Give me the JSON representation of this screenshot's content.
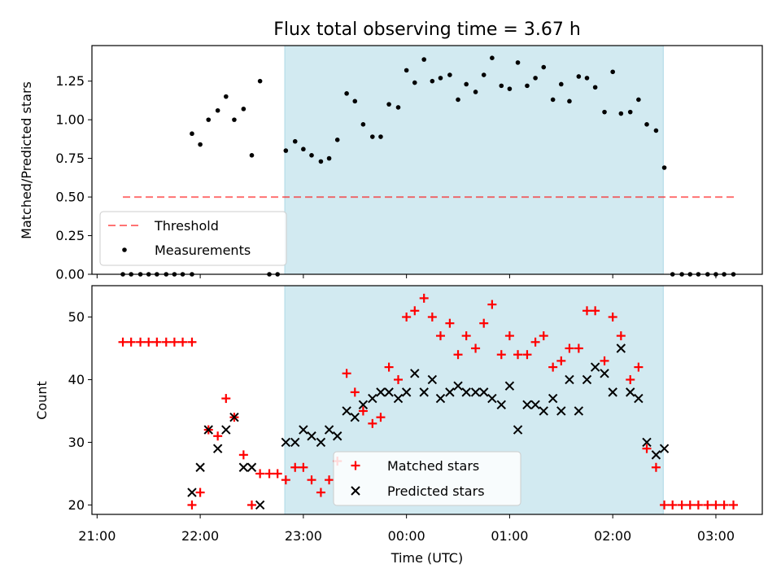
{
  "title": "Flux total observing time = 3.67 h",
  "x_axis": {
    "label": "Time (UTC)",
    "range_hours": [
      20.95,
      27.45
    ],
    "ticks": [
      {
        "value": 21,
        "label": "21:00"
      },
      {
        "value": 22,
        "label": "22:00"
      },
      {
        "value": 23,
        "label": "23:00"
      },
      {
        "value": 24,
        "label": "00:00"
      },
      {
        "value": 25,
        "label": "01:00"
      },
      {
        "value": 26,
        "label": "02:00"
      },
      {
        "value": 27,
        "label": "03:00"
      }
    ]
  },
  "observing_window_hours": [
    22.82,
    26.49
  ],
  "colors": {
    "window": "#add8e6",
    "threshold": "#ff0000",
    "measurements": "#000000",
    "matched": "#ff0000",
    "predicted": "#000000"
  },
  "chart_data": [
    {
      "type": "scatter",
      "panel": "top",
      "ylabel": "Matched/Predicted stars",
      "ylim": [
        0,
        1.48
      ],
      "yticks": [
        "0.00",
        "0.25",
        "0.50",
        "0.75",
        "1.00",
        "1.25"
      ],
      "threshold": {
        "name": "Threshold",
        "value": 0.5,
        "x_range": [
          21.25,
          27.2
        ]
      },
      "legend": [
        "Threshold",
        "Measurements"
      ],
      "legend_position": "lower-left",
      "series": [
        {
          "name": "Measurements",
          "x": [
            21.25,
            21.33,
            21.42,
            21.5,
            21.58,
            21.67,
            21.75,
            21.83,
            21.92,
            21.92,
            22.0,
            22.08,
            22.17,
            22.25,
            22.33,
            22.42,
            22.5,
            22.58,
            22.67,
            22.75,
            22.83,
            22.92,
            23.0,
            23.08,
            23.17,
            23.25,
            23.33,
            23.42,
            23.5,
            23.58,
            23.67,
            23.75,
            23.83,
            23.92,
            24.0,
            24.08,
            24.17,
            24.25,
            24.33,
            24.42,
            24.5,
            24.58,
            24.67,
            24.75,
            24.83,
            24.92,
            25.0,
            25.08,
            25.17,
            25.25,
            25.33,
            25.42,
            25.5,
            25.58,
            25.67,
            25.75,
            25.83,
            25.92,
            26.0,
            26.08,
            26.17,
            26.25,
            26.33,
            26.42,
            26.5,
            26.58,
            26.67,
            26.75,
            26.83,
            26.92,
            27.0,
            27.08,
            27.17
          ],
          "y": [
            0,
            0,
            0,
            0,
            0,
            0,
            0,
            0,
            0,
            0.91,
            0.84,
            1.0,
            1.06,
            1.15,
            1.0,
            1.07,
            0.77,
            1.25,
            0,
            0,
            0.8,
            0.86,
            0.81,
            0.77,
            0.73,
            0.75,
            0.87,
            1.17,
            1.12,
            0.97,
            0.89,
            0.89,
            1.1,
            1.08,
            1.32,
            1.24,
            1.39,
            1.25,
            1.27,
            1.29,
            1.13,
            1.23,
            1.18,
            1.29,
            1.4,
            1.22,
            1.2,
            1.37,
            1.22,
            1.27,
            1.34,
            1.13,
            1.23,
            1.12,
            1.28,
            1.27,
            1.21,
            1.05,
            1.31,
            1.04,
            1.05,
            1.13,
            0.97,
            0.93,
            0.69,
            0,
            0,
            0,
            0,
            0,
            0,
            0,
            0
          ]
        }
      ]
    },
    {
      "type": "scatter",
      "panel": "bottom",
      "ylabel": "Count",
      "ylim": [
        18.5,
        55
      ],
      "yticks": [
        "20",
        "30",
        "40",
        "50"
      ],
      "legend": [
        "Matched stars",
        "Predicted stars"
      ],
      "legend_position": "lower-center",
      "series": [
        {
          "name": "Matched stars",
          "marker": "plus",
          "x": [
            21.25,
            21.33,
            21.42,
            21.5,
            21.58,
            21.67,
            21.75,
            21.83,
            21.92,
            21.92,
            22.0,
            22.08,
            22.17,
            22.25,
            22.33,
            22.42,
            22.5,
            22.58,
            22.67,
            22.75,
            22.83,
            22.92,
            23.0,
            23.08,
            23.17,
            23.25,
            23.33,
            23.42,
            23.5,
            23.58,
            23.67,
            23.75,
            23.83,
            23.92,
            24.0,
            24.08,
            24.17,
            24.25,
            24.33,
            24.42,
            24.5,
            24.58,
            24.67,
            24.75,
            24.83,
            24.92,
            25.0,
            25.08,
            25.17,
            25.25,
            25.33,
            25.42,
            25.5,
            25.58,
            25.67,
            25.75,
            25.83,
            25.92,
            26.0,
            26.08,
            26.17,
            26.25,
            26.33,
            26.42,
            26.5,
            26.58,
            26.67,
            26.75,
            26.83,
            26.92,
            27.0,
            27.08,
            27.17
          ],
          "y": [
            46,
            46,
            46,
            46,
            46,
            46,
            46,
            46,
            46,
            20,
            22,
            32,
            31,
            37,
            34,
            28,
            20,
            25,
            25,
            25,
            24,
            26,
            26,
            24,
            22,
            24,
            27,
            41,
            38,
            35,
            33,
            34,
            42,
            40,
            50,
            51,
            53,
            50,
            47,
            49,
            44,
            47,
            45,
            49,
            52,
            44,
            47,
            44,
            44,
            46,
            47,
            42,
            43,
            45,
            45,
            51,
            51,
            43,
            50,
            47,
            40,
            42,
            29,
            26,
            20,
            20,
            20,
            20,
            20,
            20,
            20,
            20,
            20
          ]
        },
        {
          "name": "Predicted stars",
          "marker": "x",
          "x": [
            21.92,
            22.0,
            22.08,
            22.17,
            22.25,
            22.33,
            22.42,
            22.5,
            22.58,
            22.83,
            22.92,
            23.0,
            23.08,
            23.17,
            23.25,
            23.33,
            23.42,
            23.5,
            23.58,
            23.67,
            23.75,
            23.83,
            23.92,
            24.0,
            24.08,
            24.17,
            24.25,
            24.33,
            24.42,
            24.5,
            24.58,
            24.67,
            24.75,
            24.83,
            24.92,
            25.0,
            25.08,
            25.17,
            25.25,
            25.33,
            25.42,
            25.5,
            25.58,
            25.67,
            25.75,
            25.83,
            25.92,
            26.0,
            26.08,
            26.17,
            26.25,
            26.33,
            26.42,
            26.5
          ],
          "y": [
            22,
            26,
            32,
            29,
            32,
            34,
            26,
            26,
            20,
            30,
            30,
            32,
            31,
            30,
            32,
            31,
            35,
            34,
            36,
            37,
            38,
            38,
            37,
            38,
            41,
            38,
            40,
            37,
            38,
            39,
            38,
            38,
            38,
            37,
            36,
            39,
            32,
            36,
            36,
            35,
            37,
            35,
            40,
            35,
            40,
            42,
            41,
            38,
            45,
            38,
            37,
            30,
            28,
            29
          ]
        }
      ]
    }
  ]
}
